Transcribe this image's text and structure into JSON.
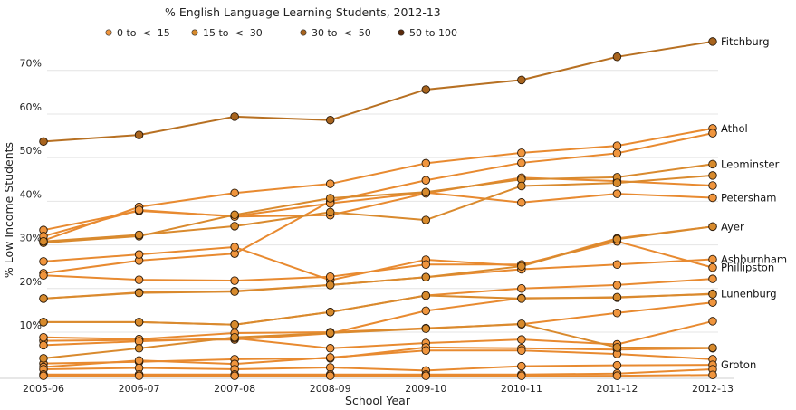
{
  "chart_data": {
    "type": "line",
    "legend": {
      "title": "% English Language Learning Students, 2012-13",
      "placement": "top",
      "entries": [
        {
          "label": "0 to < 15",
          "color": "#f0953d"
        },
        {
          "label": "15 to < 30",
          "color": "#d78a2c"
        },
        {
          "label": "30 to < 50",
          "color": "#a8641e"
        },
        {
          "label": "50 to 100",
          "color": "#5c2a0b"
        }
      ]
    },
    "xlabel": "School Year",
    "ylabel": "% Low Income Students",
    "categories": [
      "2005-06",
      "2006-07",
      "2007-08",
      "2008-09",
      "2009-10",
      "2010-11",
      "2011-12",
      "2012-13"
    ],
    "yticks": [
      10,
      20,
      30,
      40,
      50,
      60,
      70
    ],
    "ytick_labels": [
      "10%",
      "20%",
      "30%",
      "40%",
      "50%",
      "60%",
      "70%"
    ],
    "ylim": [
      -1,
      77
    ],
    "grid": "horizontal",
    "series": [
      {
        "name": "Fitchburg",
        "bin": 2,
        "values": [
          53.7,
          55.2,
          59.4,
          58.6,
          65.6,
          67.8,
          73.1,
          76.6
        ]
      },
      {
        "name": "Athol",
        "bin": 0,
        "values": [
          31.0,
          38.7,
          41.9,
          44.0,
          48.7,
          51.1,
          52.7,
          56.7
        ]
      },
      {
        "bin": 0,
        "values": [
          23.5,
          26.4,
          28.0,
          40.0,
          44.8,
          48.8,
          51.0,
          55.6
        ]
      },
      {
        "name": "Leominster",
        "bin": 1,
        "values": [
          30.5,
          32.0,
          36.9,
          40.7,
          42.1,
          45.0,
          45.5,
          48.5
        ]
      },
      {
        "bin": 1,
        "values": [
          30.8,
          32.3,
          34.3,
          37.5,
          35.7,
          43.5,
          44.2,
          45.9
        ]
      },
      {
        "name": "Petersham",
        "bin": 0,
        "values": [
          33.4,
          37.8,
          36.6,
          39.5,
          42.0,
          39.7,
          41.7,
          40.8
        ]
      },
      {
        "bin": 0,
        "values": [
          32.0,
          38.0,
          36.5,
          36.8,
          41.8,
          45.4,
          44.6,
          43.6
        ]
      },
      {
        "name": "Ayer",
        "bin": 0,
        "values": [
          26.2,
          27.8,
          29.5,
          21.9,
          26.6,
          25.2,
          31.5,
          34.2
        ]
      },
      {
        "name": "Phillipston",
        "bin": 0,
        "values": [
          23.0,
          22.0,
          21.8,
          22.7,
          25.5,
          25.5,
          30.8,
          24.8
        ]
      },
      {
        "bin": 1,
        "values": [
          17.7,
          19.0,
          19.3,
          20.8,
          22.6,
          25.1,
          31.3,
          34.2
        ]
      },
      {
        "name": "Ashburnham",
        "bin": 0,
        "values": [
          17.7,
          19.1,
          19.4,
          20.8,
          22.6,
          24.4,
          25.5,
          26.7
        ]
      },
      {
        "bin": 0,
        "values": [
          12.3,
          12.3,
          11.7,
          14.6,
          18.4,
          20.0,
          20.8,
          22.2
        ]
      },
      {
        "bin": 1,
        "values": [
          12.3,
          12.3,
          11.7,
          14.6,
          18.4,
          17.7,
          18.0,
          18.7
        ]
      },
      {
        "name": "Lunenburg",
        "bin": 0,
        "values": [
          8.0,
          8.2,
          8.3,
          9.7,
          14.9,
          17.8,
          17.9,
          18.8
        ]
      },
      {
        "bin": 0,
        "values": [
          8.8,
          8.4,
          9.8,
          10.0,
          10.9,
          11.8,
          14.4,
          16.8
        ]
      },
      {
        "bin": 0,
        "values": [
          7.0,
          7.9,
          8.6,
          6.3,
          7.5,
          8.3,
          7.2,
          12.5
        ]
      },
      {
        "bin": 1,
        "values": [
          4.0,
          6.3,
          8.8,
          9.8,
          10.8,
          11.9,
          6.5,
          6.4
        ]
      },
      {
        "bin": 0,
        "values": [
          2.8,
          3.2,
          3.8,
          4.0,
          6.5,
          6.3,
          6.0,
          6.3
        ]
      },
      {
        "bin": 0,
        "values": [
          2.0,
          3.5,
          2.7,
          4.2,
          5.8,
          5.8,
          5.0,
          3.8
        ]
      },
      {
        "name": "Groton",
        "bin": 0,
        "values": [
          1.5,
          1.8,
          1.5,
          1.9,
          1.2,
          2.2,
          2.4,
          2.5
        ]
      },
      {
        "bin": 0,
        "values": [
          0.3,
          0.3,
          0.3,
          0.3,
          0.3,
          0.3,
          0.5,
          1.5
        ]
      },
      {
        "bin": 0,
        "values": [
          0.0,
          0.0,
          0.0,
          0.0,
          0.0,
          0.0,
          0.0,
          0.2
        ]
      }
    ]
  }
}
